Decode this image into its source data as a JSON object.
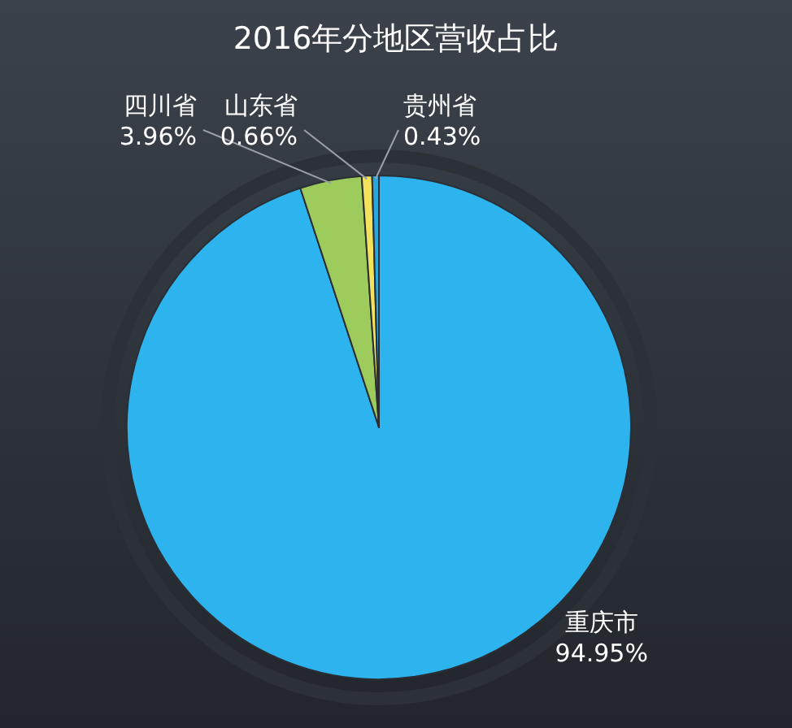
{
  "chart_data": {
    "type": "pie",
    "title": "2016年分地区营收占比",
    "categories": [
      "重庆市",
      "四川省",
      "山东省",
      "贵州省"
    ],
    "values": [
      94.95,
      3.96,
      0.66,
      0.43
    ],
    "value_labels": [
      "94.95%",
      "3.96%",
      "0.66%",
      "0.43%"
    ],
    "colors": [
      "#2db4ee",
      "#9dcb5c",
      "#f3e35c",
      "#2aa6de"
    ]
  }
}
